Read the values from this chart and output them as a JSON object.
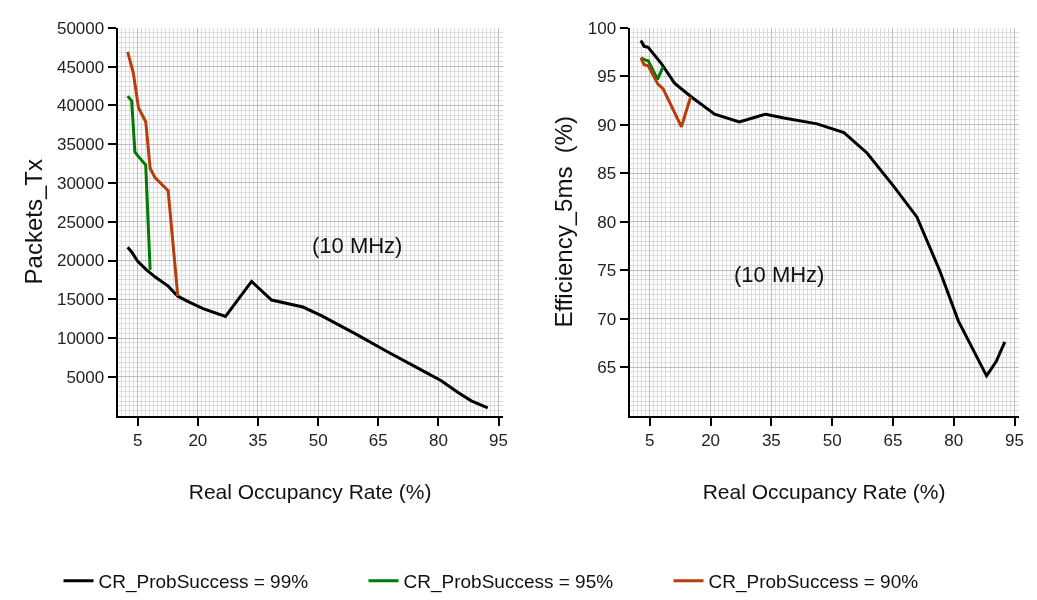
{
  "chart_data": [
    {
      "type": "line",
      "xlabel": "Real Occupancy Rate (%)",
      "ylabel": "Packets_Tx",
      "annotations": [
        "(10 MHz)"
      ],
      "xlim": [
        0,
        96
      ],
      "xticks": [
        5,
        20,
        35,
        50,
        65,
        80,
        95
      ],
      "ylim": [
        0,
        50000
      ],
      "yticks": [
        5000,
        10000,
        15000,
        20000,
        25000,
        30000,
        35000,
        40000,
        45000,
        50000
      ],
      "grid": true,
      "legend": "bottom",
      "line_style": "solid",
      "series": [
        {
          "name": "CR_ProbSuccess = 99%",
          "color": "#000000",
          "x": [
            2.5,
            3.5,
            5,
            7.2,
            9.3,
            12.6,
            15,
            17.6,
            21.3,
            26.9,
            33.4,
            38.4,
            46.2,
            50.8,
            59.1,
            67.4,
            75.7,
            80.7,
            84.8,
            88.2,
            92.3
          ],
          "values": [
            21700,
            21100,
            19900,
            18800,
            17900,
            16700,
            15400,
            14700,
            13800,
            12800,
            17300,
            14900,
            14000,
            12900,
            10600,
            8200,
            5900,
            4500,
            3000,
            1900,
            1000
          ]
        },
        {
          "name": "CR_ProbSuccess = 95%",
          "color": "#007a00",
          "x": [
            2.5,
            3.5,
            4.3,
            5.2,
            7,
            8.1
          ],
          "values": [
            41200,
            40600,
            34000,
            33400,
            32300,
            18800
          ]
        },
        {
          "name": "CR_ProbSuccess = 90%",
          "color": "#b83c0c",
          "x": [
            2.5,
            3.9,
            5.2,
            7,
            8.1,
            9.3,
            12.6,
            15
          ],
          "values": [
            46900,
            44200,
            39700,
            37900,
            31900,
            30700,
            29000,
            15400
          ]
        }
      ]
    },
    {
      "type": "line",
      "xlabel": "Real Occupancy Rate (%)",
      "ylabel": "Efficiency_5ms  (%)",
      "annotations": [
        "(10 MHz)"
      ],
      "xlim": [
        0,
        96
      ],
      "xticks": [
        5,
        20,
        35,
        50,
        65,
        80,
        95
      ],
      "ylim": [
        60,
        100
      ],
      "yticks": [
        65,
        70,
        75,
        80,
        85,
        90,
        95,
        100
      ],
      "grid": true,
      "line_style": "solid",
      "series": [
        {
          "color": "#000000",
          "x": [
            2.8,
            3.6,
            4.6,
            7.9,
            11.1,
            15.2,
            21,
            27.1,
            33.6,
            38.1,
            46.3,
            52.9,
            58.6,
            65.1,
            70.9,
            76.6,
            81.1,
            88.1,
            90.5,
            92.6
          ],
          "values": [
            98.7,
            98.1,
            98.0,
            96.3,
            94.3,
            92.9,
            91.1,
            90.3,
            91.1,
            90.7,
            90.1,
            89.2,
            87.1,
            83.7,
            80.5,
            74.9,
            69.8,
            64.1,
            65.6,
            67.6
          ]
        },
        {
          "color": "#007a00",
          "x": [
            2.8,
            3.8,
            4.6,
            6.9,
            8.3
          ],
          "values": [
            96.9,
            96.7,
            96.6,
            94.7,
            96.0
          ]
        },
        {
          "color": "#b83c0c",
          "x": [
            2.8,
            3.6,
            4.6,
            7.0,
            8.3,
            12.8,
            15.1
          ],
          "values": [
            96.9,
            96.2,
            96.1,
            94.2,
            93.7,
            89.8,
            92.9
          ]
        }
      ]
    }
  ]
}
